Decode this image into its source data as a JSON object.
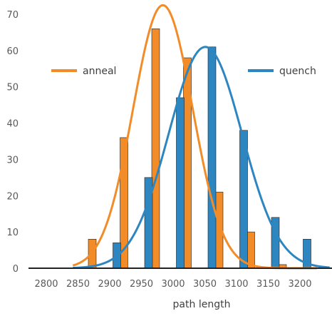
{
  "chart_data": {
    "type": "bar",
    "xlabel": "path length",
    "ylabel": "",
    "ylim": [
      0,
      70
    ],
    "xlim": [
      2800,
      3200
    ],
    "yticks": [
      0,
      10,
      20,
      30,
      40,
      50,
      60,
      70
    ],
    "xticks": [
      2800,
      2850,
      2900,
      2950,
      3000,
      3050,
      3100,
      3150,
      3200
    ],
    "grid": false,
    "legend_placement": "top, split left and right",
    "series": [
      {
        "name": "anneal",
        "color": "#f28c28",
        "bars": [
          {
            "x": 2850,
            "value": 8
          },
          {
            "x": 2900,
            "value": 36
          },
          {
            "x": 2950,
            "value": 66
          },
          {
            "x": 3000,
            "value": 58
          },
          {
            "x": 3050,
            "value": 21
          },
          {
            "x": 3100,
            "value": 10
          },
          {
            "x": 3150,
            "value": 1
          },
          {
            "x": 3200,
            "value": 0
          }
        ],
        "curve": {
          "type": "normal",
          "mean": 2967,
          "sd": 47,
          "peak": 72.5,
          "x_range": [
            2825,
            3210
          ]
        }
      },
      {
        "name": "quench",
        "color": "#2e86c1",
        "bars": [
          {
            "x": 2850,
            "value": 0
          },
          {
            "x": 2900,
            "value": 7
          },
          {
            "x": 2950,
            "value": 25
          },
          {
            "x": 3000,
            "value": 47
          },
          {
            "x": 3050,
            "value": 61
          },
          {
            "x": 3100,
            "value": 38
          },
          {
            "x": 3150,
            "value": 14
          },
          {
            "x": 3200,
            "value": 8
          }
        ],
        "curve": {
          "type": "normal",
          "mean": 3034,
          "sd": 58,
          "peak": 61,
          "x_range": [
            2825,
            3230
          ]
        }
      }
    ]
  }
}
